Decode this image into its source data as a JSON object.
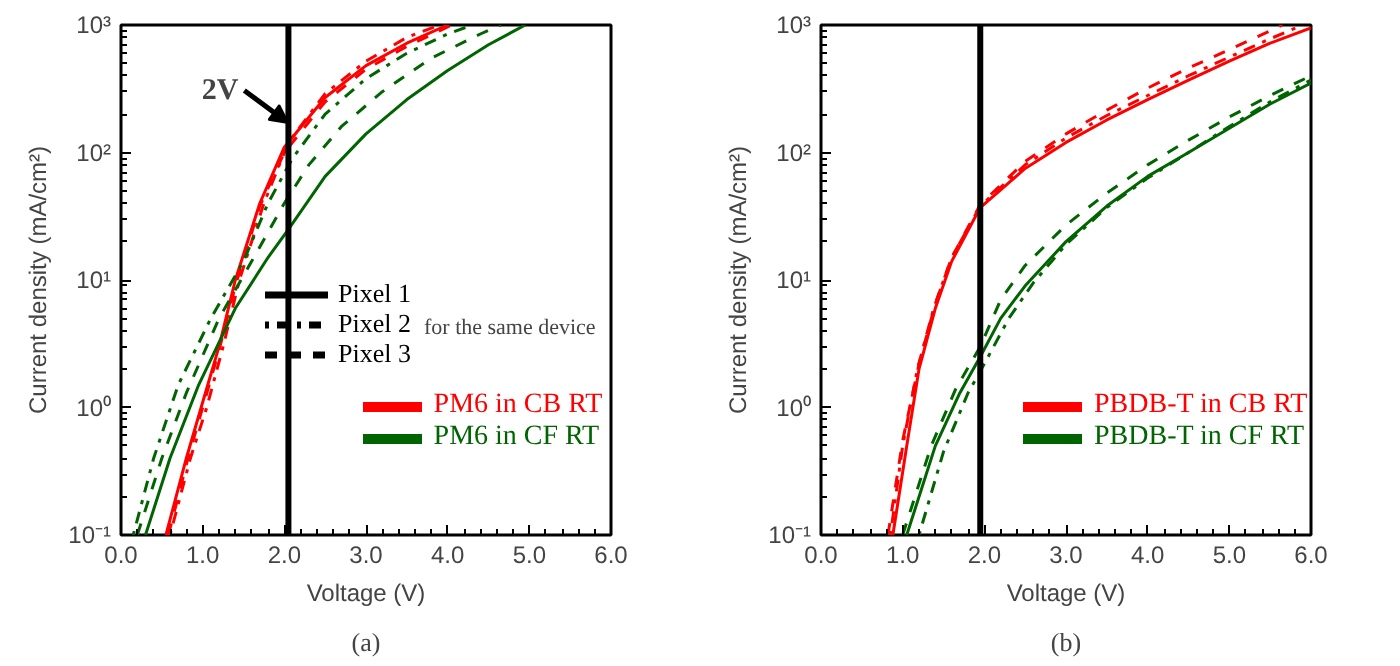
{
  "chart_data": [
    {
      "type": "line",
      "title": "(a)",
      "xlabel": "Voltage (V)",
      "ylabel": "Current density (mA/cm²)",
      "log": "y",
      "grid": false,
      "legend": "bottom right",
      "xlim": [
        0,
        6
      ],
      "xticks": [
        {
          "value": 0,
          "label": "0.0"
        },
        {
          "value": 1,
          "label": "1.0"
        },
        {
          "value": 2,
          "label": "2.0"
        },
        {
          "value": 3,
          "label": "3.0"
        },
        {
          "value": 4,
          "label": "4.0"
        },
        {
          "value": 5,
          "label": "5.0"
        },
        {
          "value": 6,
          "label": "6.0"
        }
      ],
      "ylim": [
        0.1,
        1000
      ],
      "yticks": [
        {
          "value": 0.1,
          "label": "10⁻¹"
        },
        {
          "value": 1,
          "label": "10⁰"
        },
        {
          "value": 10,
          "label": "10¹"
        },
        {
          "value": 100,
          "label": "10²"
        },
        {
          "value": 1000,
          "label": "10³"
        }
      ],
      "ref_lines": [
        {
          "axis": "x",
          "value": 2.05,
          "color": "#000000"
        }
      ],
      "annotations": [
        "Pixel 1",
        "Pixel 2",
        "Pixel 3",
        "for the same device",
        {
          "text": "2V",
          "x": 2.05,
          "y": 170
        }
      ],
      "series": [
        {
          "name": "PM6 in CB RT",
          "color": "#ff0000",
          "line_style": "solid",
          "x": [
            0.55,
            0.8,
            1.0,
            1.2,
            1.4,
            1.7,
            2.0,
            2.5,
            3.0,
            3.5,
            4.0
          ],
          "values": [
            0.1,
            0.4,
            1.1,
            3,
            10,
            40,
            110,
            270,
            480,
            720,
            1000
          ]
        },
        {
          "color": "#ff0000",
          "line_style": "dotted",
          "x": [
            0.6,
            0.85,
            1.05,
            1.25,
            1.45,
            1.75,
            2.05,
            2.5,
            3.0,
            3.5,
            3.9
          ],
          "values": [
            0.1,
            0.4,
            1,
            3,
            10,
            40,
            120,
            290,
            520,
            800,
            1000
          ]
        },
        {
          "color": "#ff0000",
          "line_style": "dashed",
          "x": [
            0.58,
            0.82,
            1.0,
            1.2,
            1.4,
            1.7,
            2.0,
            2.5,
            3.0,
            3.5,
            4.05
          ],
          "values": [
            0.1,
            0.4,
            1.0,
            2.8,
            9,
            38,
            100,
            250,
            450,
            680,
            1000
          ]
        },
        {
          "name": "PM6 in CF RT",
          "color": "#006400",
          "line_style": "solid",
          "x": [
            0.3,
            0.6,
            0.95,
            1.4,
            1.8,
            2.05,
            2.5,
            3.0,
            3.5,
            4.0,
            4.5,
            4.95
          ],
          "values": [
            0.1,
            0.4,
            1.5,
            6,
            15,
            25,
            65,
            140,
            260,
            440,
            700,
            1000
          ]
        },
        {
          "color": "#006400",
          "line_style": "dotted",
          "x": [
            0.15,
            0.4,
            0.7,
            1.1,
            1.5,
            1.8,
            2.1,
            2.5,
            3.0,
            3.5,
            4.0,
            4.3
          ],
          "values": [
            0.1,
            0.4,
            1.5,
            5,
            14,
            40,
            90,
            200,
            380,
            600,
            850,
            1000
          ]
        },
        {
          "color": "#006400",
          "line_style": "dashed",
          "x": [
            0.2,
            0.5,
            0.8,
            1.2,
            1.6,
            2.0,
            2.3,
            2.7,
            3.2,
            3.8,
            4.4,
            4.65
          ],
          "values": [
            0.1,
            0.4,
            1.3,
            5,
            14,
            40,
            80,
            160,
            300,
            550,
            850,
            1000
          ]
        }
      ]
    },
    {
      "type": "line",
      "title": "(b)",
      "xlabel": "Voltage (V)",
      "ylabel": "Current density (mA/cm²)",
      "log": "y",
      "grid": false,
      "legend": "bottom right",
      "xlim": [
        0,
        6
      ],
      "xticks": [
        {
          "value": 0,
          "label": "0.0"
        },
        {
          "value": 1,
          "label": "1.0"
        },
        {
          "value": 2,
          "label": "2.0"
        },
        {
          "value": 3,
          "label": "3.0"
        },
        {
          "value": 4,
          "label": "4.0"
        },
        {
          "value": 5,
          "label": "5.0"
        },
        {
          "value": 6,
          "label": "6.0"
        }
      ],
      "ylim": [
        0.1,
        1000
      ],
      "yticks": [
        {
          "value": 0.1,
          "label": "10⁻¹"
        },
        {
          "value": 1,
          "label": "10⁰"
        },
        {
          "value": 10,
          "label": "10¹"
        },
        {
          "value": 100,
          "label": "10²"
        },
        {
          "value": 1000,
          "label": "10³"
        }
      ],
      "ref_lines": [
        {
          "axis": "x",
          "value": 1.95,
          "color": "#000000"
        }
      ],
      "series": [
        {
          "name": "PBDB-T in CB RT",
          "color": "#ff0000",
          "line_style": "solid",
          "x": [
            0.88,
            1.05,
            1.2,
            1.4,
            1.6,
            1.95,
            2.5,
            3.0,
            3.5,
            4.0,
            4.5,
            5.0,
            5.5,
            6.0
          ],
          "values": [
            0.1,
            0.5,
            2,
            6,
            14,
            37,
            75,
            120,
            180,
            260,
            370,
            520,
            720,
            950
          ]
        },
        {
          "color": "#ff0000",
          "line_style": "dotted",
          "x": [
            0.85,
            1.0,
            1.18,
            1.38,
            1.6,
            1.95,
            2.5,
            3.0,
            3.5,
            4.0,
            4.5,
            5.0,
            5.5,
            5.9
          ],
          "values": [
            0.1,
            0.5,
            2,
            6,
            15,
            38,
            80,
            130,
            195,
            280,
            400,
            560,
            780,
            1000
          ]
        },
        {
          "color": "#ff0000",
          "line_style": "dashed",
          "x": [
            0.82,
            1.0,
            1.2,
            1.4,
            1.6,
            1.95,
            2.5,
            3.0,
            3.5,
            4.0,
            4.5,
            5.0,
            5.5,
            5.65
          ],
          "values": [
            0.1,
            0.55,
            2.2,
            6.5,
            15,
            39,
            85,
            140,
            215,
            320,
            460,
            640,
            900,
            1000
          ]
        },
        {
          "name": "PBDB-T in CF RT",
          "color": "#006400",
          "line_style": "solid",
          "x": [
            1.05,
            1.4,
            1.7,
            1.95,
            2.2,
            2.5,
            3.0,
            3.5,
            4.0,
            4.5,
            5.0,
            5.5,
            6.0
          ],
          "values": [
            0.1,
            0.5,
            1.3,
            2.5,
            5,
            9,
            20,
            38,
            65,
            100,
            155,
            240,
            350
          ]
        },
        {
          "color": "#006400",
          "line_style": "dotted",
          "x": [
            1.2,
            1.5,
            1.8,
            2.0,
            2.3,
            2.6,
            3.0,
            3.5,
            4.0,
            4.5,
            5.0,
            5.5,
            6.0
          ],
          "values": [
            0.1,
            0.45,
            1.3,
            2.2,
            5,
            9.5,
            19,
            37,
            63,
            100,
            160,
            250,
            370
          ]
        },
        {
          "color": "#006400",
          "line_style": "dashed",
          "x": [
            1.0,
            1.35,
            1.65,
            1.95,
            2.2,
            2.5,
            3.0,
            3.5,
            4.0,
            4.5,
            5.0,
            5.5,
            6.0
          ],
          "values": [
            0.1,
            0.5,
            1.4,
            3,
            7,
            13,
            27,
            48,
            80,
            125,
            190,
            280,
            400
          ]
        }
      ]
    }
  ]
}
